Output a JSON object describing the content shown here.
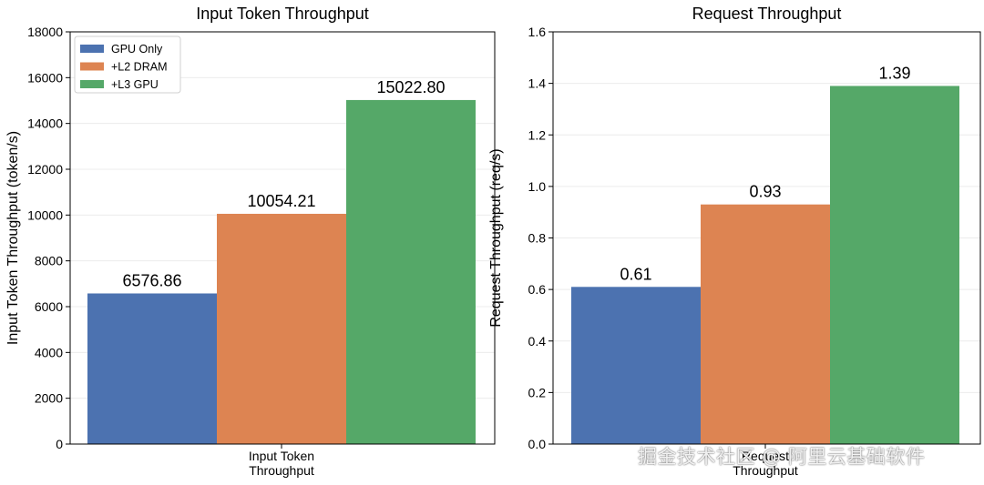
{
  "chart_data": [
    {
      "type": "bar",
      "title": "Input Token Throughput",
      "xlabel": "",
      "ylabel": "Input Token Throughput (token/s)",
      "categories": [
        "Input Token\nThroughput"
      ],
      "ylim": [
        0,
        18000
      ],
      "yticks": [
        "0",
        "2000",
        "4000",
        "6000",
        "8000",
        "10000",
        "12000",
        "14000",
        "16000",
        "18000"
      ],
      "grid": true,
      "legend_position": "upper-left",
      "series": [
        {
          "name": "GPU Only",
          "values": [
            6576.86
          ],
          "label": "6576.86",
          "color": "#4c72b0"
        },
        {
          "name": "+L2 DRAM",
          "values": [
            10054.21
          ],
          "label": "10054.21",
          "color": "#dd8452"
        },
        {
          "name": "+L3 GPU",
          "values": [
            15022.8
          ],
          "label": "15022.80",
          "color": "#55a868"
        }
      ]
    },
    {
      "type": "bar",
      "title": "Request Throughput",
      "xlabel": "",
      "ylabel": "Request Throughput (req/s)",
      "categories": [
        "Request\nThroughput"
      ],
      "ylim": [
        0,
        1.6
      ],
      "yticks": [
        "0.0",
        "0.2",
        "0.4",
        "0.6",
        "0.8",
        "1.0",
        "1.2",
        "1.4",
        "1.6"
      ],
      "grid": true,
      "series": [
        {
          "name": "GPU Only",
          "values": [
            0.61
          ],
          "label": "0.61",
          "color": "#4c72b0"
        },
        {
          "name": "+L2 DRAM",
          "values": [
            0.93
          ],
          "label": "0.93",
          "color": "#dd8452"
        },
        {
          "name": "+L3 GPU",
          "values": [
            1.39
          ],
          "label": "1.39",
          "color": "#55a868"
        }
      ]
    }
  ],
  "watermark": "掘金技术社区 @ 阿里云基础软件"
}
